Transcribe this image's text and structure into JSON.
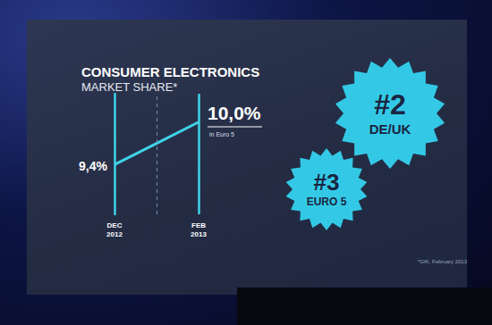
{
  "chart_data": {
    "type": "line",
    "title": "CONSUMER ELECTRONICS",
    "subtitle": "MARKET SHARE*",
    "categories": [
      "DEC\n2012",
      null,
      "FEB\n2013"
    ],
    "values": [
      9.4,
      9.7,
      10.0
    ],
    "value_labels": [
      "9,4%",
      null,
      "10,0%"
    ],
    "data_labels": true,
    "color": "#3fd3e8",
    "ylim": [
      8.7,
      10.4
    ],
    "yticks": [],
    "grid": false,
    "tick_labels": "x",
    "annotation": "in Euro 5",
    "badges": [
      {
        "rank": "#2",
        "label": "DE/UK"
      },
      {
        "rank": "#3",
        "label": "EURO 5"
      }
    ],
    "footnote": "*GfK, February 2013"
  }
}
